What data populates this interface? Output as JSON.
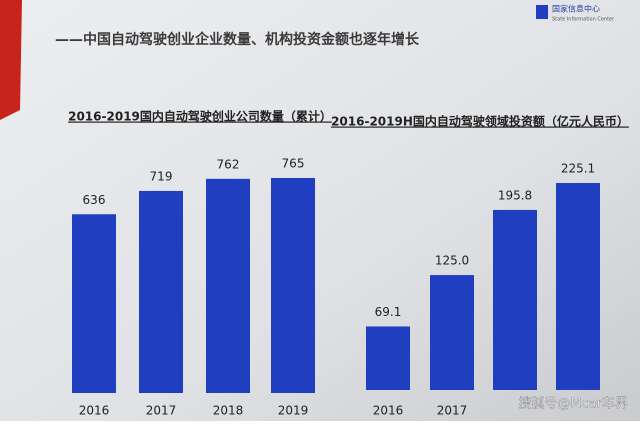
{
  "header": {
    "title": "——中国自动驾驶创业企业数量、机构投资金额也逐年增长",
    "logo_cn": "国家信息中心",
    "logo_en": "State Information Center"
  },
  "watermark": "搜狐号@Mcar车界",
  "chart_data": [
    {
      "type": "bar",
      "title": "2016-2019国内自动驾驶创业公司数量（累计）",
      "categories": [
        "2016",
        "2017",
        "2018",
        "2019"
      ],
      "values": [
        636,
        719,
        762,
        765
      ],
      "color": "#1f3fc0"
    },
    {
      "type": "bar",
      "title": "2016-2019H国内自动驾驶领域投资额（亿元人民币）",
      "categories": [
        "2016",
        "2017",
        null,
        null
      ],
      "values": [
        69.1,
        125.0,
        195.8,
        225.1
      ],
      "value_labels": [
        "69.1",
        "125.0",
        "195.8",
        "225.1"
      ],
      "color": "#1f3fc0"
    }
  ]
}
